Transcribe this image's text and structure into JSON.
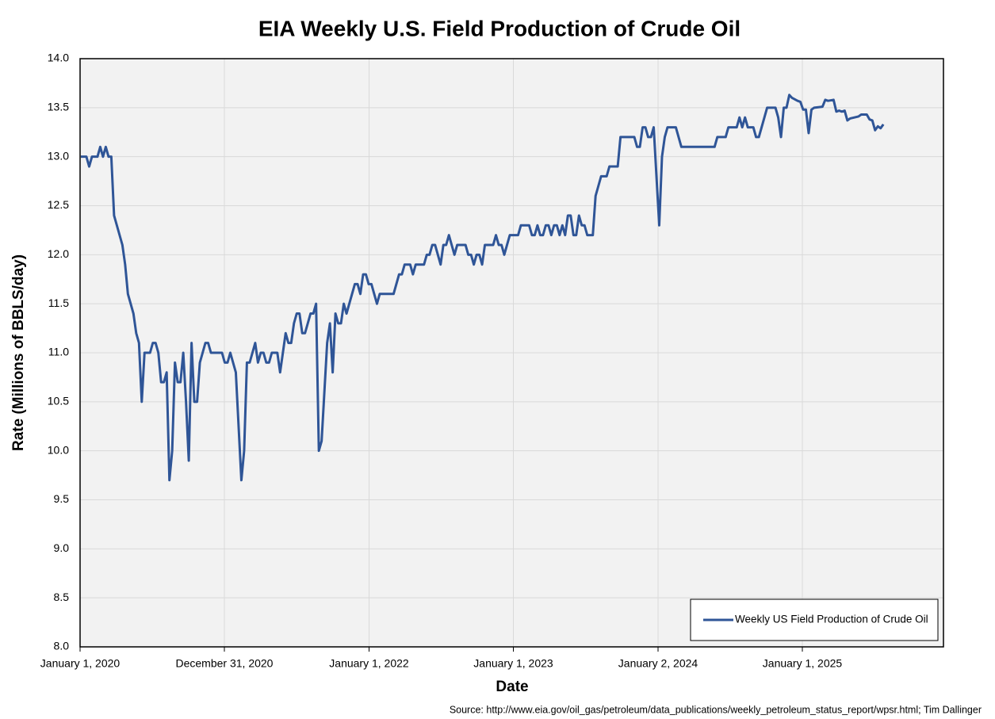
{
  "chart_data": {
    "type": "line",
    "title": "EIA Weekly U.S. Field Production of Crude Oil",
    "x_label": "Date",
    "y_label": "Rate (Millions of BBLS/day)",
    "source": "Source: http://www.eia.gov/oil_gas/petroleum/data_publications/weekly_petroleum_status_report/wpsr.html; Tim Dallinger",
    "xlim": [
      "2020-01-01",
      "2025-12-24"
    ],
    "xticks": [
      {
        "value": "2020-01-01",
        "label": "January 1, 2020"
      },
      {
        "value": "2020-12-31",
        "label": "December 31, 2020"
      },
      {
        "value": "2022-01-01",
        "label": "January 1, 2022"
      },
      {
        "value": "2023-01-01",
        "label": "January 1, 2023"
      },
      {
        "value": "2024-01-02",
        "label": "January 2, 2024"
      },
      {
        "value": "2025-01-01",
        "label": "January 1, 2025"
      }
    ],
    "ylim": [
      8,
      14
    ],
    "yticks": [
      {
        "value": 8,
        "label": "8.0"
      },
      {
        "value": 8.5,
        "label": "8.5"
      },
      {
        "value": 9,
        "label": "9.0"
      },
      {
        "value": 9.5,
        "label": "9.5"
      },
      {
        "value": 10,
        "label": "10.0"
      },
      {
        "value": 10.5,
        "label": "10.5"
      },
      {
        "value": 11,
        "label": "11.0"
      },
      {
        "value": 11.5,
        "label": "11.5"
      },
      {
        "value": 12,
        "label": "12.0"
      },
      {
        "value": 12.5,
        "label": "12.5"
      },
      {
        "value": 13,
        "label": "13.0"
      },
      {
        "value": 13.5,
        "label": "13.5"
      },
      {
        "value": 14,
        "label": "14.0"
      }
    ],
    "grid": true,
    "legend": "lower right",
    "x": [
      "2020-01-03",
      "2020-01-17",
      "2020-01-24",
      "2020-01-31",
      "2020-02-14",
      "2020-02-21",
      "2020-02-28",
      "2020-03-06",
      "2020-03-13",
      "2020-03-20",
      "2020-03-27",
      "2020-04-03",
      "2020-04-17",
      "2020-04-24",
      "2020-05-01",
      "2020-05-08",
      "2020-05-15",
      "2020-05-22",
      "2020-05-29",
      "2020-06-05",
      "2020-06-12",
      "2020-06-26",
      "2020-07-03",
      "2020-07-10",
      "2020-07-17",
      "2020-07-24",
      "2020-07-31",
      "2020-08-07",
      "2020-08-14",
      "2020-08-21",
      "2020-08-28",
      "2020-09-04",
      "2020-09-11",
      "2020-09-18",
      "2020-09-25",
      "2020-10-02",
      "2020-10-09",
      "2020-10-16",
      "2020-10-23",
      "2020-10-30",
      "2020-11-06",
      "2020-11-13",
      "2020-11-20",
      "2020-11-27",
      "2020-12-25",
      "2021-01-01",
      "2021-01-08",
      "2021-01-15",
      "2021-01-29",
      "2021-02-12",
      "2021-02-19",
      "2021-02-26",
      "2021-03-05",
      "2021-03-12",
      "2021-03-19",
      "2021-03-26",
      "2021-04-02",
      "2021-04-09",
      "2021-04-16",
      "2021-04-23",
      "2021-04-30",
      "2021-05-14",
      "2021-05-21",
      "2021-05-28",
      "2021-06-04",
      "2021-06-11",
      "2021-06-18",
      "2021-06-25",
      "2021-07-02",
      "2021-07-09",
      "2021-07-16",
      "2021-07-23",
      "2021-07-30",
      "2021-08-06",
      "2021-08-13",
      "2021-08-20",
      "2021-08-27",
      "2021-09-03",
      "2021-09-10",
      "2021-09-17",
      "2021-09-24",
      "2021-10-01",
      "2021-10-08",
      "2021-10-15",
      "2021-10-22",
      "2021-10-29",
      "2021-11-05",
      "2021-11-12",
      "2021-11-19",
      "2021-11-26",
      "2021-12-03",
      "2021-12-10",
      "2021-12-17",
      "2021-12-24",
      "2021-12-31",
      "2022-01-07",
      "2022-01-14",
      "2022-01-21",
      "2022-01-28",
      "2022-03-04",
      "2022-03-11",
      "2022-03-18",
      "2022-03-25",
      "2022-04-01",
      "2022-04-15",
      "2022-04-22",
      "2022-04-29",
      "2022-05-20",
      "2022-05-27",
      "2022-06-03",
      "2022-06-10",
      "2022-06-17",
      "2022-06-24",
      "2022-07-01",
      "2022-07-08",
      "2022-07-15",
      "2022-07-22",
      "2022-07-29",
      "2022-08-05",
      "2022-08-12",
      "2022-09-02",
      "2022-09-09",
      "2022-09-16",
      "2022-09-23",
      "2022-09-30",
      "2022-10-07",
      "2022-10-14",
      "2022-10-21",
      "2022-11-11",
      "2022-11-18",
      "2022-11-25",
      "2022-12-02",
      "2022-12-09",
      "2022-12-16",
      "2022-12-23",
      "2023-01-13",
      "2023-01-20",
      "2023-02-10",
      "2023-02-17",
      "2023-02-24",
      "2023-03-03",
      "2023-03-10",
      "2023-03-17",
      "2023-03-24",
      "2023-03-31",
      "2023-04-07",
      "2023-04-14",
      "2023-04-21",
      "2023-04-28",
      "2023-05-05",
      "2023-05-12",
      "2023-05-19",
      "2023-05-26",
      "2023-06-02",
      "2023-06-09",
      "2023-06-16",
      "2023-06-23",
      "2023-06-30",
      "2023-07-07",
      "2023-07-21",
      "2023-07-28",
      "2023-08-04",
      "2023-08-11",
      "2023-08-25",
      "2023-09-01",
      "2023-09-22",
      "2023-09-29",
      "2023-11-03",
      "2023-11-10",
      "2023-11-17",
      "2023-11-24",
      "2023-12-01",
      "2023-12-08",
      "2023-12-15",
      "2023-12-22",
      "2024-01-05",
      "2024-01-12",
      "2024-01-19",
      "2024-01-26",
      "2024-02-16",
      "2024-02-23",
      "2024-03-01",
      "2024-05-24",
      "2024-05-31",
      "2024-06-21",
      "2024-06-28",
      "2024-07-19",
      "2024-07-26",
      "2024-08-02",
      "2024-08-09",
      "2024-08-16",
      "2024-08-30",
      "2024-09-06",
      "2024-09-13",
      "2024-09-20",
      "2024-09-27",
      "2024-10-04",
      "2024-10-25",
      "2024-11-01",
      "2024-11-08",
      "2024-11-15",
      "2024-11-22",
      "2024-11-29",
      "2024-12-06",
      "2024-12-20",
      "2024-12-27",
      "2025-01-03",
      "2025-01-10",
      "2025-01-17",
      "2025-01-24",
      "2025-01-31",
      "2025-02-21",
      "2025-02-28",
      "2025-03-07",
      "2025-03-21",
      "2025-03-28",
      "2025-04-04",
      "2025-04-11",
      "2025-04-18",
      "2025-04-25",
      "2025-05-02",
      "2025-05-23",
      "2025-05-30",
      "2025-06-13",
      "2025-06-20",
      "2025-06-27",
      "2025-07-04",
      "2025-07-11",
      "2025-07-18",
      "2025-07-25"
    ],
    "series": [
      {
        "name": "Weekly US Field Production of Crude Oil",
        "color": "#2f5597",
        "values": [
          13.0,
          13.0,
          12.9,
          13.0,
          13.0,
          13.1,
          13.0,
          13.1,
          13.0,
          13.0,
          12.4,
          12.3,
          12.1,
          11.9,
          11.6,
          11.5,
          11.4,
          11.2,
          11.1,
          10.5,
          11.0,
          11.0,
          11.1,
          11.1,
          11.0,
          10.7,
          10.7,
          10.8,
          9.7,
          10.0,
          10.9,
          10.7,
          10.7,
          11.0,
          10.5,
          9.9,
          11.1,
          10.5,
          10.5,
          10.9,
          11.0,
          11.1,
          11.1,
          11.0,
          11.0,
          10.9,
          10.9,
          11.0,
          10.8,
          9.7,
          10.0,
          10.9,
          10.9,
          11.0,
          11.1,
          10.9,
          11.0,
          11.0,
          10.9,
          10.9,
          11.0,
          11.0,
          10.8,
          11.0,
          11.2,
          11.1,
          11.1,
          11.3,
          11.4,
          11.4,
          11.2,
          11.2,
          11.3,
          11.4,
          11.4,
          11.5,
          10.0,
          10.1,
          10.6,
          11.1,
          11.3,
          10.8,
          11.4,
          11.3,
          11.3,
          11.5,
          11.4,
          11.5,
          11.6,
          11.7,
          11.7,
          11.6,
          11.8,
          11.8,
          11.7,
          11.7,
          11.6,
          11.5,
          11.6,
          11.6,
          11.7,
          11.8,
          11.8,
          11.9,
          11.9,
          11.8,
          11.9,
          11.9,
          12.0,
          12.0,
          12.1,
          12.1,
          12.0,
          11.9,
          12.1,
          12.1,
          12.2,
          12.1,
          12.0,
          12.1,
          12.1,
          12.0,
          12.0,
          11.9,
          12.0,
          12.0,
          11.9,
          12.1,
          12.1,
          12.2,
          12.1,
          12.1,
          12.0,
          12.1,
          12.2,
          12.2,
          12.3,
          12.3,
          12.2,
          12.2,
          12.3,
          12.2,
          12.2,
          12.3,
          12.3,
          12.2,
          12.3,
          12.3,
          12.2,
          12.3,
          12.2,
          12.4,
          12.4,
          12.2,
          12.2,
          12.4,
          12.3,
          12.3,
          12.2,
          12.2,
          12.6,
          12.7,
          12.8,
          12.8,
          12.9,
          12.9,
          13.2,
          13.2,
          13.1,
          13.1,
          13.3,
          13.3,
          13.2,
          13.2,
          13.3,
          12.3,
          13.0,
          13.2,
          13.3,
          13.3,
          13.2,
          13.1,
          13.1,
          13.2,
          13.2,
          13.3,
          13.3,
          13.4,
          13.3,
          13.4,
          13.3,
          13.3,
          13.2,
          13.2,
          13.3,
          13.4,
          13.5,
          13.5,
          13.4,
          13.2,
          13.5,
          13.5,
          13.63,
          13.6,
          13.57,
          13.56,
          13.48,
          13.48,
          13.24,
          13.48,
          13.5,
          13.51,
          13.58,
          13.57,
          13.58,
          13.46,
          13.47,
          13.46,
          13.47,
          13.37,
          13.39,
          13.41,
          13.43,
          13.43,
          13.38,
          13.37,
          13.27,
          13.31,
          13.29,
          13.33
        ]
      }
    ]
  }
}
